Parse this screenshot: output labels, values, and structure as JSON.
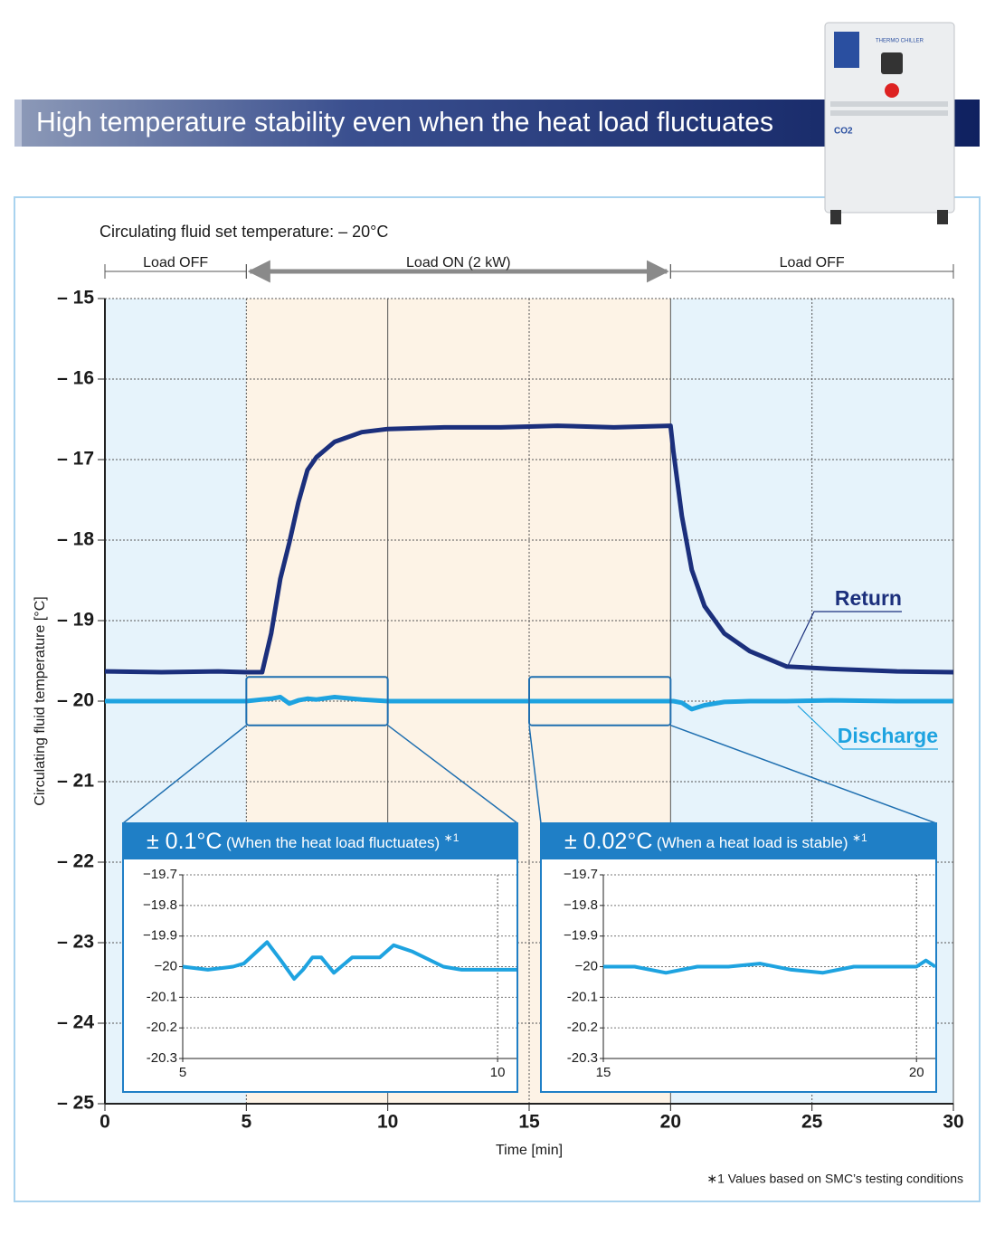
{
  "header": {
    "title": "High temperature stability even when the heat load fluctuates"
  },
  "product": {
    "label": "THERMO CHILLER",
    "badge": "CO2"
  },
  "footnote": "∗1  Values based on SMC’s testing conditions",
  "chart_data": [
    {
      "type": "line",
      "subtitle": "Circulating fluid set temperature: – 20°C",
      "x_label": "Time [min]",
      "y_label": "Circulating fluid temperature [°C]",
      "regions": [
        {
          "label": "Load OFF",
          "start": 0,
          "end": 5,
          "color": "#e6f3fb"
        },
        {
          "label": "Load ON (2 kW)",
          "start": 5,
          "end": 20,
          "color": "#fdf3e6"
        },
        {
          "label": "Load OFF",
          "start": 20,
          "end": 30,
          "color": "#e6f3fb"
        }
      ],
      "x": [
        0,
        2,
        4,
        5,
        5.56,
        5.88,
        6.2,
        6.52,
        6.84,
        7.16,
        7.48,
        8.12,
        9.08,
        10,
        12,
        14,
        16,
        18,
        20,
        20.1,
        20.4,
        20.75,
        21.2,
        21.9,
        22.8,
        24.1,
        25.7,
        28,
        30
      ],
      "series": [
        {
          "name": "Return",
          "color": "#1b2f7c",
          "values": [
            -19.63,
            -19.64,
            -19.63,
            -19.64,
            -19.64,
            -19.16,
            -18.48,
            -18.03,
            -17.53,
            -17.13,
            -16.97,
            -16.78,
            -16.66,
            -16.62,
            -16.6,
            -16.6,
            -16.58,
            -16.6,
            -16.58,
            -16.9,
            -17.7,
            -18.37,
            -18.82,
            -19.16,
            -19.38,
            -19.57,
            -19.6,
            -19.63,
            -19.64
          ]
        },
        {
          "name": "Discharge",
          "color": "#1ea3e0",
          "values": [
            -20,
            -20,
            -20,
            -20,
            -19.98,
            -19.97,
            -19.95,
            -20.03,
            -19.99,
            -19.97,
            -19.98,
            -19.95,
            -19.98,
            -20,
            -20,
            -20,
            -20,
            -20,
            -20,
            -20,
            -20.02,
            -20.1,
            -20.05,
            -20.01,
            -20,
            -20,
            -19.99,
            -20,
            -20
          ]
        }
      ],
      "xlim": [
        0,
        30
      ],
      "xticks": [
        0,
        5,
        10,
        15,
        20,
        25,
        30
      ],
      "ylim": [
        -25,
        -15
      ],
      "yticks": [
        {
          "value": -25,
          "label": "– 25"
        },
        {
          "value": -24,
          "label": "– 24"
        },
        {
          "value": -23,
          "label": "– 23"
        },
        {
          "value": -22,
          "label": "– 22"
        },
        {
          "value": -21,
          "label": "– 21"
        },
        {
          "value": -20,
          "label": "– 20"
        },
        {
          "value": -19,
          "label": "– 19"
        },
        {
          "value": -18,
          "label": "– 18"
        },
        {
          "value": -17,
          "label": "– 17"
        },
        {
          "value": -16,
          "label": "– 16"
        },
        {
          "value": -15,
          "label": "– 15"
        }
      ],
      "grid": true
    },
    {
      "type": "line",
      "title": "± 0.1°C",
      "subtitle": "(When the heat load fluctuates)",
      "note": "∗1",
      "x": [
        5,
        5.4,
        5.8,
        5.97,
        6.34,
        6.56,
        6.77,
        6.91,
        7.06,
        7.2,
        7.4,
        7.69,
        8.13,
        8.35,
        8.64,
        9.14,
        9.43,
        10,
        10.3
      ],
      "values": [
        -20,
        -20.01,
        -20,
        -19.99,
        -19.92,
        -19.98,
        -20.04,
        -20.01,
        -19.97,
        -19.97,
        -20.02,
        -19.97,
        -19.97,
        -19.93,
        -19.95,
        -20,
        -20.01,
        -20.01,
        -20.01
      ],
      "color": "#1ea3e0",
      "xlim": [
        5,
        10.3
      ],
      "xticks": [
        5,
        10
      ],
      "ylim": [
        -20.3,
        -19.7
      ],
      "yticks": [
        -20.3,
        -20.2,
        -20.1,
        {
          "value": -20,
          "label": "−20"
        },
        {
          "value": -19.9,
          "label": "−19.9"
        },
        {
          "value": -19.8,
          "label": "−19.8"
        },
        {
          "value": -19.7,
          "label": "−19.7"
        }
      ],
      "grid": true
    },
    {
      "type": "line",
      "title": "± 0.02°C",
      "subtitle": "(When a heat load is stable)",
      "note": "∗1",
      "x": [
        15,
        15.5,
        16,
        16.5,
        17,
        17.5,
        18,
        18.5,
        19,
        19.5,
        20,
        20.15,
        20.3
      ],
      "values": [
        -20,
        -20,
        -20.02,
        -20,
        -20,
        -19.99,
        -20.01,
        -20.02,
        -20,
        -20,
        -20,
        -19.98,
        -20
      ],
      "color": "#1ea3e0",
      "xlim": [
        15,
        20.3
      ],
      "xticks": [
        15,
        20
      ],
      "ylim": [
        -20.3,
        -19.7
      ],
      "yticks": [
        -20.3,
        -20.2,
        -20.1,
        {
          "value": -20,
          "label": "−20"
        },
        {
          "value": -19.9,
          "label": "−19.9"
        },
        {
          "value": -19.8,
          "label": "−19.8"
        },
        {
          "value": -19.7,
          "label": "−19.7"
        }
      ],
      "grid": true
    }
  ]
}
